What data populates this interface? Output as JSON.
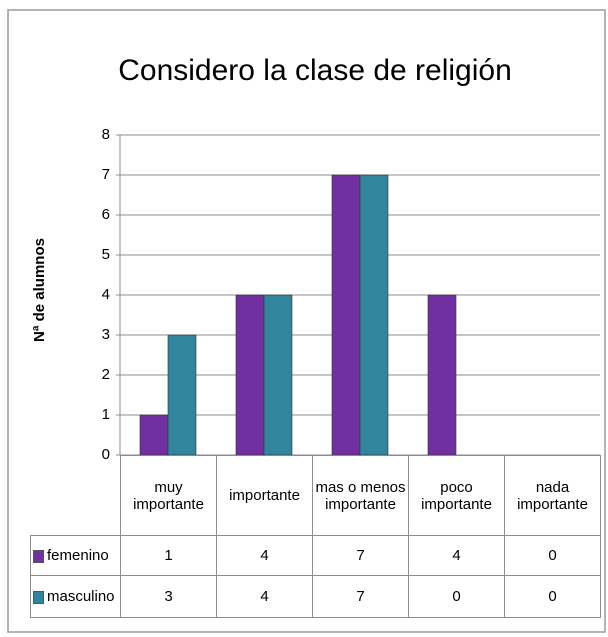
{
  "chart_data": {
    "type": "bar",
    "title": "Considero la clase de religión",
    "y_label": "Nª de alumnos",
    "categories": [
      "muy importante",
      "importante",
      "mas o menos importante",
      "poco importante",
      "nada importante"
    ],
    "series": [
      {
        "name": "femenino",
        "color": "#7030a0",
        "values": [
          1,
          4,
          7,
          4,
          0
        ]
      },
      {
        "name": "masculino",
        "color": "#31859c",
        "values": [
          3,
          4,
          7,
          0,
          0
        ]
      }
    ],
    "ylim": [
      0,
      8
    ],
    "yticks": [
      0,
      1,
      2,
      3,
      4,
      5,
      6,
      7,
      8
    ],
    "grid": true
  }
}
